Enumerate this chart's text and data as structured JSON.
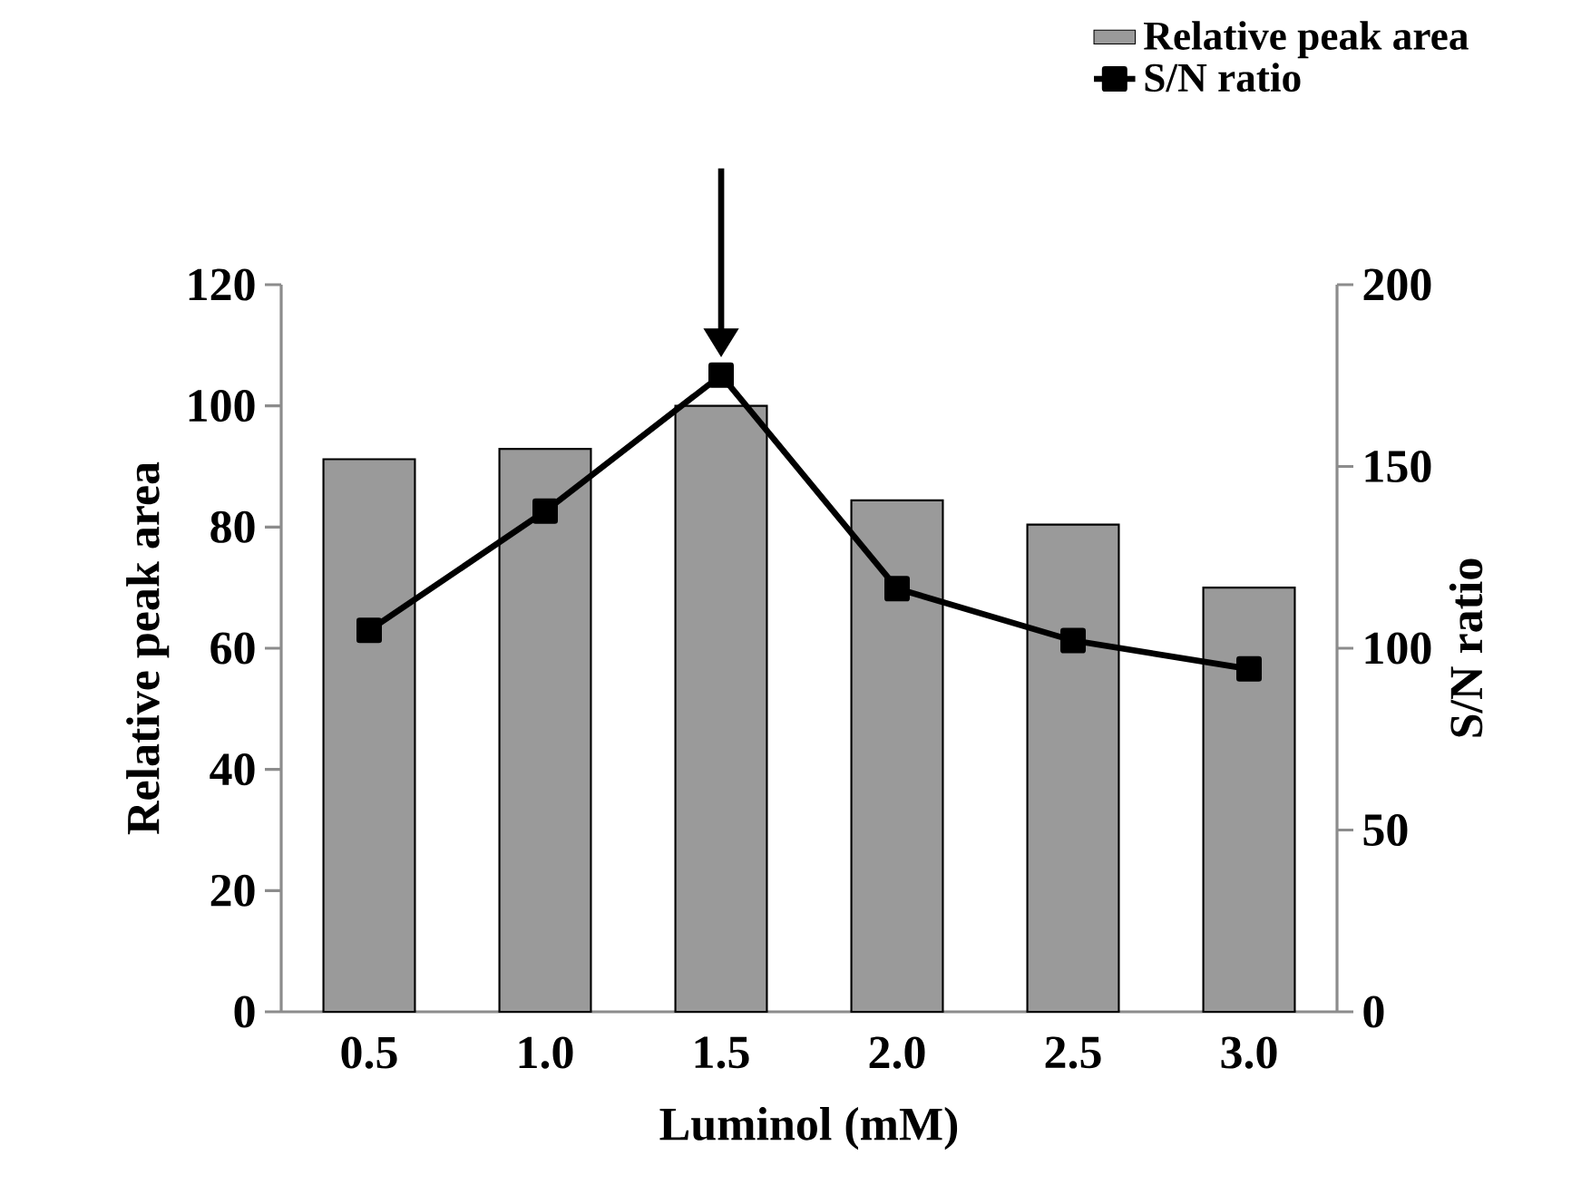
{
  "chart_data": {
    "type": "bar",
    "xlabel": "Luminol (mM)",
    "ylabel": "Relative peak area",
    "y2label": "S/N ratio",
    "categories": [
      "0.5",
      "1.0",
      "1.5",
      "2.0",
      "2.5",
      "3.0"
    ],
    "series": [
      {
        "name": "Relative peak area",
        "color": "#9a9a9a",
        "values": [
          91.2,
          92.9,
          100,
          84.4,
          80.4,
          70.0
        ]
      },
      {
        "name": "S/N ratio",
        "type": "line",
        "axis": "y2",
        "color": "#000000",
        "values": [
          104.9,
          137.7,
          175.1,
          116.4,
          102.1,
          94.3
        ]
      }
    ],
    "ylim": [
      0,
      120
    ],
    "yticks": [
      0,
      20,
      40,
      60,
      80,
      100,
      120
    ],
    "y2lim": [
      0,
      200
    ],
    "y2ticks": [
      0,
      50,
      100,
      150,
      200
    ],
    "legend": "top right",
    "marker": "square",
    "line_style": "solid"
  }
}
